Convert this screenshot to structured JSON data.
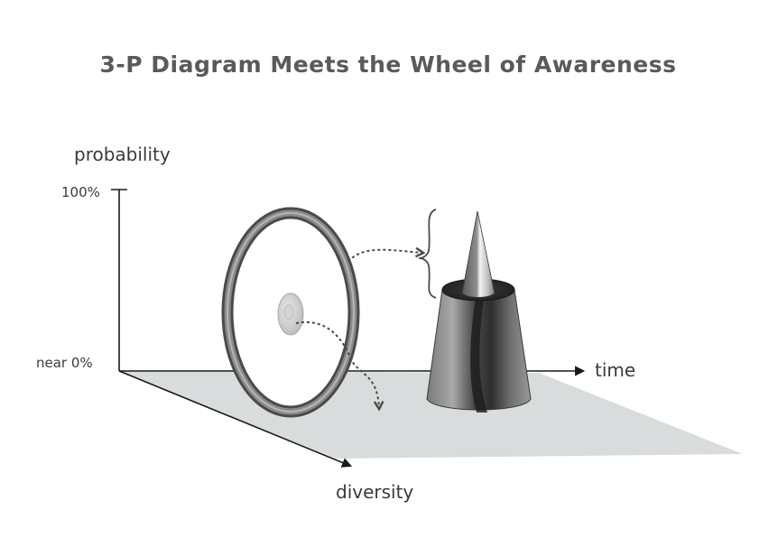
{
  "title": "3-P Diagram Meets the Wheel of Awareness",
  "axes": {
    "vertical_label": "probability",
    "horizontal_label": "time",
    "depth_label": "diversity",
    "tick_top": "100%",
    "tick_bottom": "near 0%"
  },
  "colors": {
    "plane": "#d9dcdc",
    "axis": "#1a1a1a",
    "rim": "#6f6f6f",
    "hub": "#cfcfcf",
    "cone": "#5f5f5f",
    "text": "#3a3a3a",
    "title": "#5a5a5a"
  }
}
